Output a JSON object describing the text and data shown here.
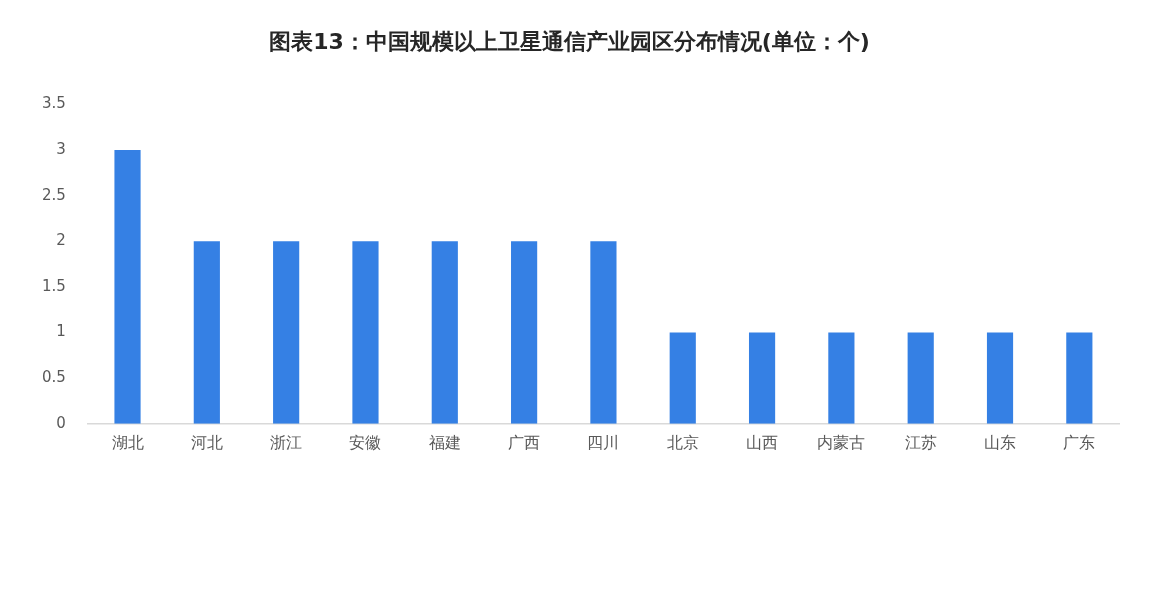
{
  "chart_data": {
    "type": "bar",
    "title": "图表13：中国规模以上卫星通信产业园区分布情况(单位：个)",
    "categories": [
      "湖北",
      "河北",
      "浙江",
      "安徽",
      "福建",
      "广西",
      "四川",
      "北京",
      "山西",
      "内蒙古",
      "江苏",
      "山东",
      "广东"
    ],
    "values": [
      3,
      2,
      2,
      2,
      2,
      2,
      2,
      1,
      1,
      1,
      1,
      1,
      1
    ],
    "color": "#3580e4",
    "ylim": [
      0,
      3.5
    ],
    "yticks": [
      0,
      0.5,
      1,
      1.5,
      2,
      2.5,
      3,
      3.5
    ]
  }
}
